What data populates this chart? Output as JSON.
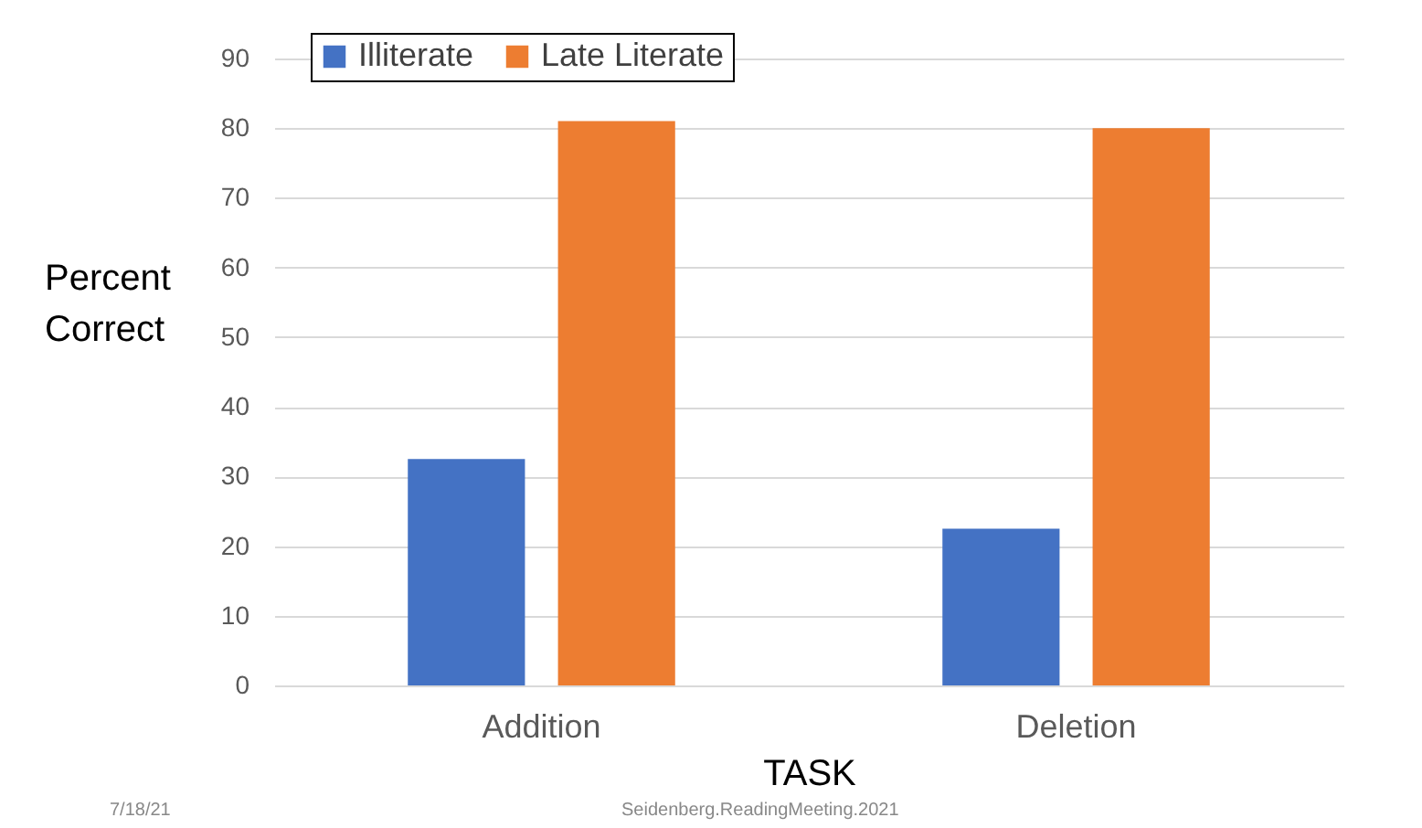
{
  "chart_data": {
    "type": "bar",
    "categories": [
      "Addition",
      "Deletion"
    ],
    "series": [
      {
        "name": "Illiterate",
        "color": "#4472c4",
        "values": [
          32.5,
          22.5
        ]
      },
      {
        "name": "Late Literate",
        "color": "#ed7d31",
        "values": [
          81,
          80
        ]
      }
    ],
    "xlabel": "TASK",
    "ylabel": "Percent Correct",
    "ylim": [
      0,
      90
    ],
    "yticks": [
      0,
      10,
      20,
      30,
      40,
      50,
      60,
      70,
      80,
      90
    ],
    "grid": "y",
    "legend": "top left",
    "annotations": [
      "7/18/21",
      "Seidenberg.ReadingMeeting.2021"
    ]
  }
}
